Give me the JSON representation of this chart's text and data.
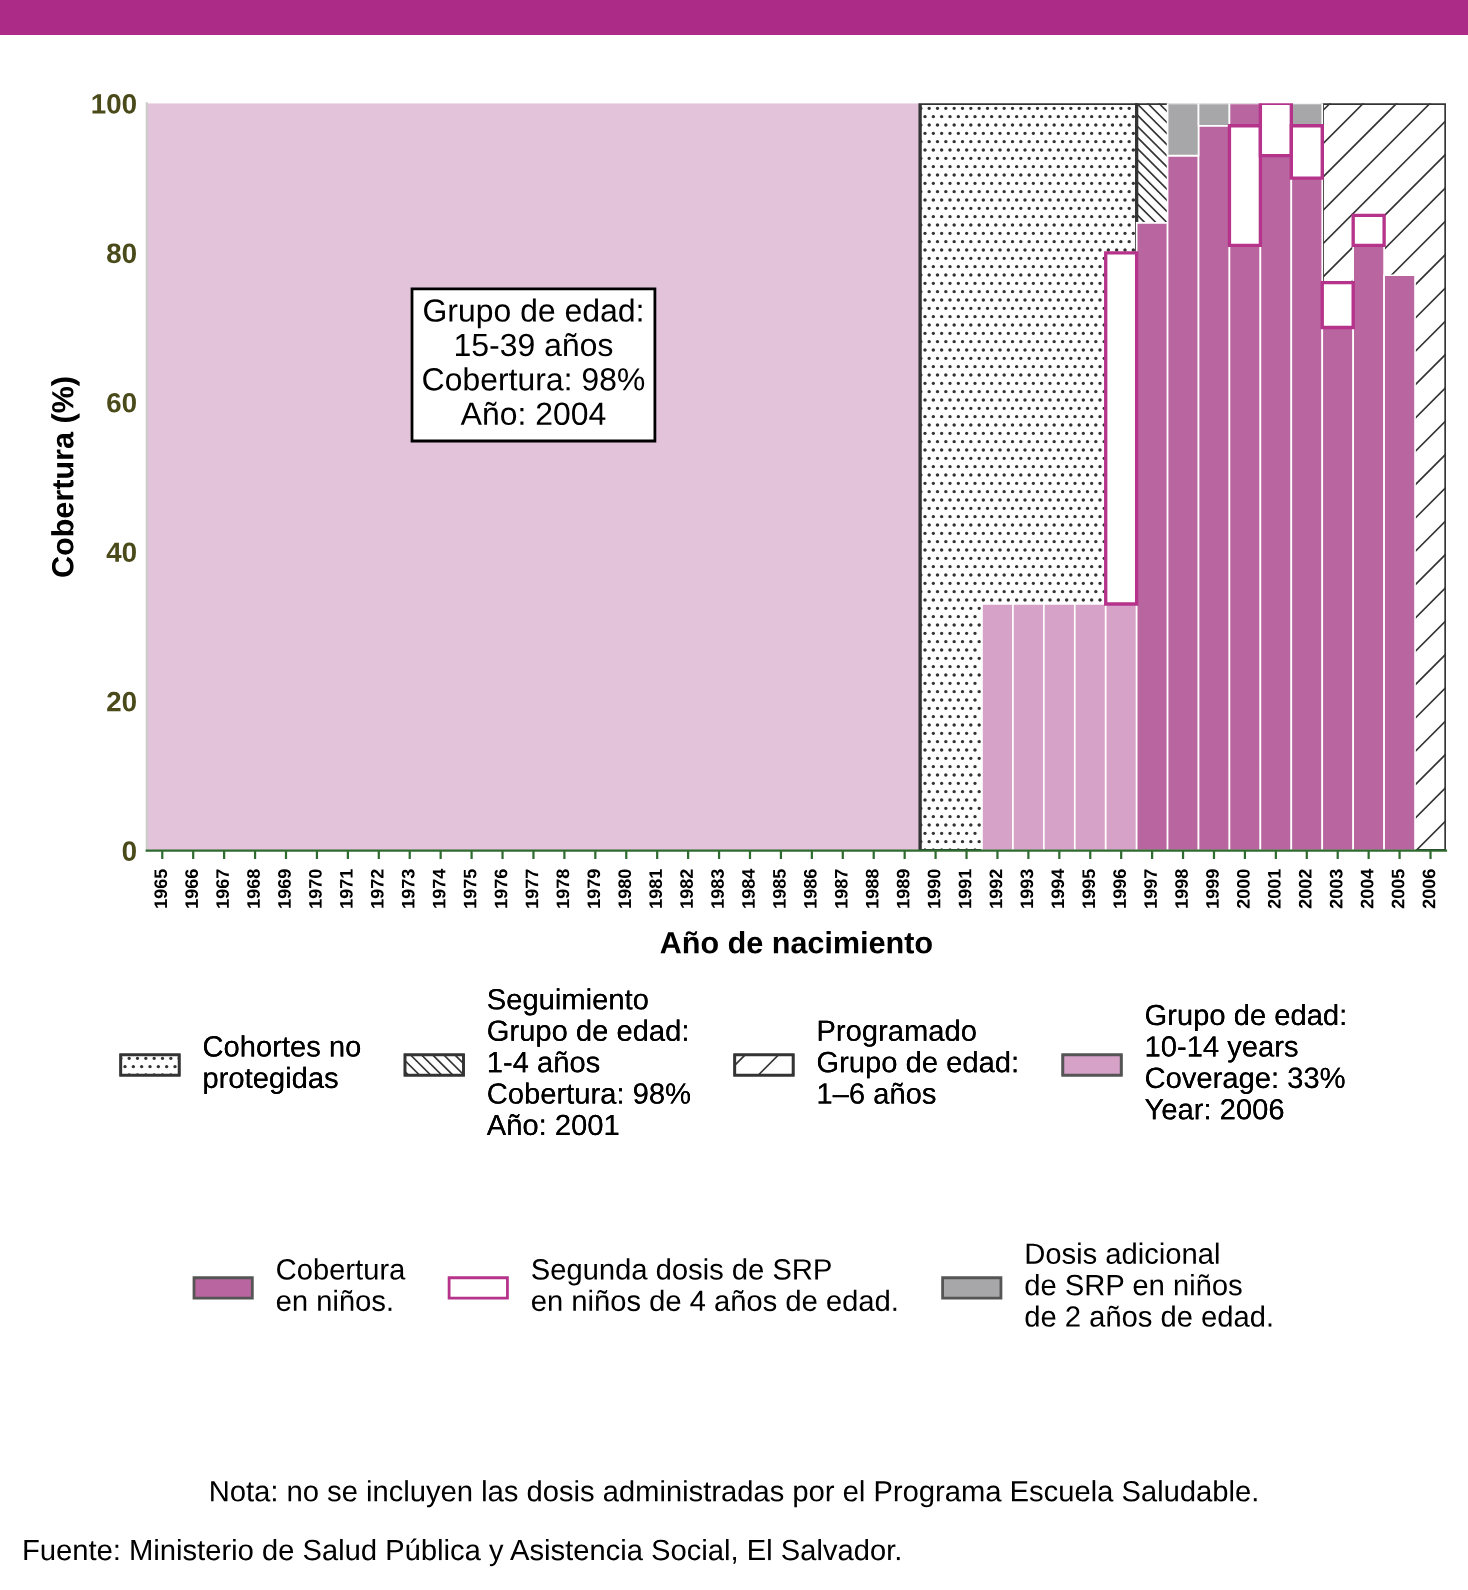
{
  "chart_data": {
    "type": "bar",
    "stacked": true,
    "xlabel": "Año de nacimiento",
    "ylabel": "Cobertura (%)",
    "categories": [
      "1965",
      "1966",
      "1967",
      "1968",
      "1969",
      "1970",
      "1971",
      "1972",
      "1973",
      "1974",
      "1975",
      "1976",
      "1977",
      "1978",
      "1979",
      "1980",
      "1981",
      "1982",
      "1983",
      "1984",
      "1985",
      "1986",
      "1987",
      "1988",
      "1989",
      "1990",
      "1991",
      "1992",
      "1993",
      "1994",
      "1995",
      "1996",
      "1997",
      "1998",
      "1999",
      "2000",
      "2001",
      "2002",
      "2003",
      "2004",
      "2005",
      "2006"
    ],
    "ylim": [
      0,
      100
    ],
    "yticks": [
      0,
      20,
      40,
      60,
      80,
      100
    ],
    "grid": false,
    "legend": "bottom",
    "series": [
      {
        "name": "Grupo de edad:\n10-14 years\nCoverage: 33%\nYear: 2006",
        "color": "#d7a2c8",
        "values": [
          null,
          null,
          null,
          null,
          null,
          null,
          null,
          null,
          null,
          null,
          null,
          null,
          null,
          null,
          null,
          null,
          null,
          null,
          null,
          null,
          null,
          null,
          null,
          null,
          null,
          null,
          null,
          33,
          33,
          33,
          33,
          33,
          null,
          null,
          null,
          null,
          null,
          null,
          null,
          null,
          null,
          null
        ]
      },
      {
        "name": "Cobertura\nen niños.",
        "color": "#b9659f",
        "values": [
          null,
          null,
          null,
          null,
          null,
          null,
          null,
          null,
          null,
          null,
          null,
          null,
          null,
          null,
          null,
          null,
          null,
          null,
          null,
          null,
          null,
          null,
          null,
          null,
          null,
          null,
          null,
          null,
          null,
          null,
          null,
          null,
          84,
          93,
          97,
          81,
          93,
          90,
          70,
          81,
          77,
          null
        ]
      },
      {
        "name": "Segunda dosis de SRP\nen niños de 4 años de edad.",
        "color": "#ffffff",
        "values": [
          null,
          null,
          null,
          null,
          null,
          null,
          null,
          null,
          null,
          null,
          null,
          null,
          null,
          null,
          null,
          null,
          null,
          null,
          null,
          null,
          null,
          null,
          null,
          null,
          null,
          null,
          null,
          null,
          null,
          null,
          null,
          47,
          null,
          null,
          null,
          16,
          7,
          7,
          6,
          4,
          null,
          null
        ]
      },
      {
        "name": "Dosis adicional\nde SRP en niños\nde 2 años de edad.",
        "color": "#a7a7aa",
        "values": [
          null,
          null,
          null,
          null,
          null,
          null,
          null,
          null,
          null,
          null,
          null,
          null,
          null,
          null,
          null,
          null,
          null,
          null,
          null,
          null,
          null,
          null,
          null,
          null,
          null,
          null,
          null,
          null,
          null,
          null,
          null,
          null,
          null,
          7,
          3,
          null,
          null,
          3,
          null,
          null,
          null,
          null
        ]
      },
      {
        "color": "#b9659f",
        "values": [
          null,
          null,
          null,
          null,
          null,
          null,
          null,
          null,
          null,
          null,
          null,
          null,
          null,
          null,
          null,
          null,
          null,
          null,
          null,
          null,
          null,
          null,
          null,
          null,
          null,
          null,
          null,
          null,
          null,
          null,
          null,
          null,
          null,
          null,
          null,
          3,
          null,
          null,
          null,
          null,
          null,
          null
        ]
      }
    ],
    "bands": [
      {
        "axis": "x",
        "from": "1965",
        "to": "1989",
        "color": "#e2c3da",
        "label": "Grupo de edad:\n15-39 años\nCobertura: 98%\nAño: 2004"
      },
      {
        "axis": "x",
        "from": "1990",
        "to": "1996",
        "label": "Cohortes no\nprotegidas"
      },
      {
        "axis": "x",
        "from": "1997",
        "to": "2000",
        "label": "Seguimiento\nGrupo de edad:\n1-4 años\nCobertura: 98%\nAño: 2001"
      },
      {
        "axis": "x",
        "from": "2003",
        "to": "2006",
        "label": "Programado\nGrupo de edad:\n1–6 años"
      }
    ],
    "annotations": [
      "Nota: no se incluyen las dosis administradas por el Programa Escuela Saludable.",
      "Fuente: Ministerio de Salud Pública y Asistencia Social, El Salvador."
    ]
  }
}
